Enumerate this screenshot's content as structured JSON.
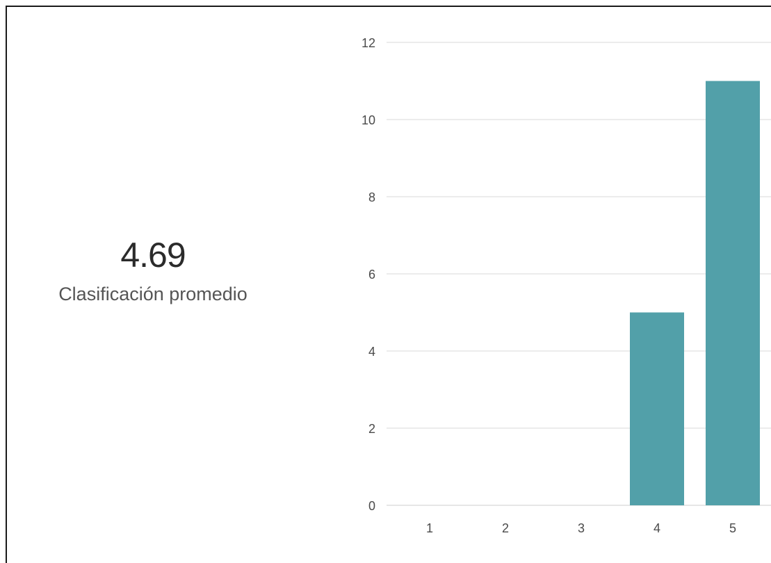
{
  "summary": {
    "average_value": "4.69",
    "average_label": "Clasificación promedio"
  },
  "chart_data": {
    "type": "bar",
    "categories": [
      "1",
      "2",
      "3",
      "4",
      "5"
    ],
    "values": [
      0,
      0,
      0,
      5,
      11
    ],
    "ylim": [
      0,
      12
    ],
    "yticks": [
      0,
      2,
      4,
      6,
      8,
      10,
      12
    ],
    "grid": true,
    "legend": "none",
    "colors": {
      "bar": "#52a0a9",
      "grid": "#e6e6e6",
      "tick_text": "#4a4a4a"
    }
  }
}
